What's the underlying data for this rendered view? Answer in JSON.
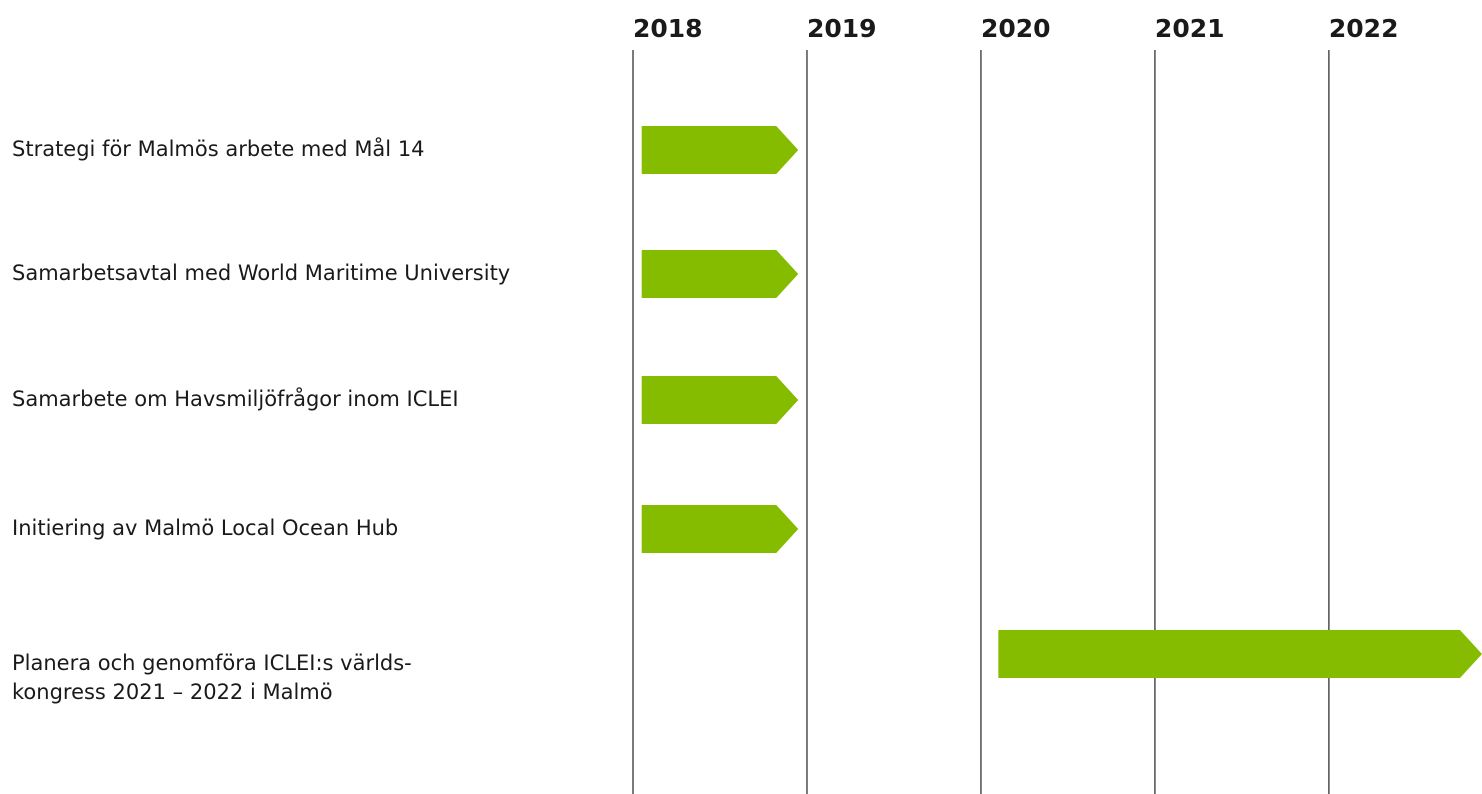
{
  "chart_data": {
    "type": "gantt",
    "categories": [
      "Strategi för Malmös arbete med Mål 14",
      "Samarbetsavtal med World Maritime University",
      "Samarbete om Havsmiljöfrågor inom ICLEI",
      "Initiering av Malmö Local Ocean Hub",
      [
        "Planera och genomföra ICLEI:s världs-",
        "kongress 2021 – 2022 i Malmö"
      ]
    ],
    "starts": [
      2018.05,
      2018.05,
      2018.05,
      2018.05,
      2020.1
    ],
    "ends": [
      2018.95,
      2018.95,
      2018.95,
      2018.95,
      2022.88
    ],
    "color": "#86bc00",
    "xlim": [
      2018,
      2022.88
    ],
    "xticks": [
      2018,
      2019,
      2020,
      2021,
      2022
    ],
    "grid": true
  }
}
